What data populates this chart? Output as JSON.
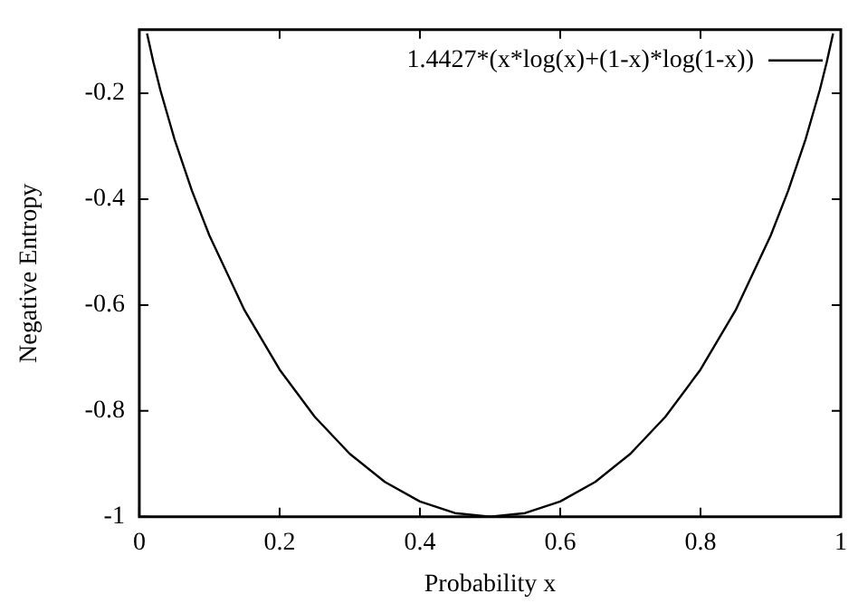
{
  "chart_data": {
    "type": "line",
    "xlabel": "Probability x",
    "ylabel": "Negative Entropy",
    "x": [
      0.011,
      0.02,
      0.03,
      0.05,
      0.075,
      0.1,
      0.15,
      0.2,
      0.25,
      0.3,
      0.35,
      0.4,
      0.45,
      0.5,
      0.55,
      0.6,
      0.65,
      0.7,
      0.75,
      0.8,
      0.85,
      0.9,
      0.925,
      0.95,
      0.97,
      0.98,
      0.989
    ],
    "series": [
      {
        "name": "1.4427*(x*log(x)+(1-x)*log(1-x))",
        "color": "#000000",
        "values": [
          -0.087,
          -0.141,
          -0.194,
          -0.286,
          -0.384,
          -0.469,
          -0.61,
          -0.722,
          -0.811,
          -0.881,
          -0.934,
          -0.971,
          -0.993,
          -1,
          -0.993,
          -0.971,
          -0.934,
          -0.881,
          -0.811,
          -0.722,
          -0.61,
          -0.469,
          -0.384,
          -0.286,
          -0.194,
          -0.141,
          -0.087
        ]
      }
    ],
    "xlim": [
      0,
      1
    ],
    "xticks": [
      0,
      0.2,
      0.4,
      0.6,
      0.8,
      1
    ],
    "ylim": [
      -1,
      -0.08
    ],
    "yticks": [
      -1,
      -0.8,
      -0.6,
      -0.4,
      -0.2
    ],
    "grid": false,
    "legend": "top right",
    "marker": "none",
    "line_style": "solid"
  }
}
